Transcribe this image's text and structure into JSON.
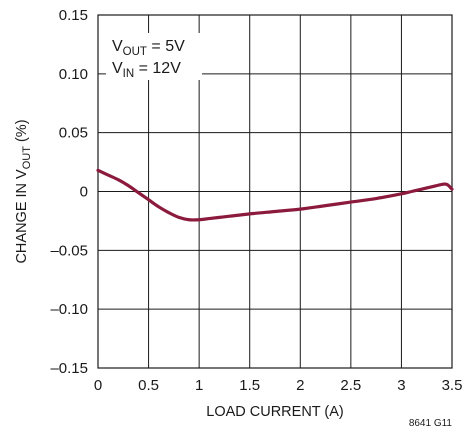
{
  "chart_data": {
    "type": "line",
    "title": "",
    "xlabel": "LOAD CURRENT (A)",
    "ylabel": {
      "prefix": "CHANGE IN V",
      "subscript": "OUT",
      "suffix": " (%)"
    },
    "xlim": [
      0,
      3.5
    ],
    "ylim": [
      -0.15,
      0.15
    ],
    "x_ticks": [
      0,
      0.5,
      1,
      1.5,
      2,
      2.5,
      3,
      3.5
    ],
    "x_tick_labels": [
      "0",
      "0.5",
      "1",
      "1.5",
      "2",
      "2.5",
      "3",
      "3.5"
    ],
    "y_ticks": [
      0.15,
      0.1,
      0.05,
      0,
      -0.05,
      -0.1,
      -0.15
    ],
    "y_tick_labels": [
      "0.15",
      "0.10",
      "0.05",
      "0",
      "–0.05",
      "–0.10",
      "–0.15"
    ],
    "grid": true,
    "annotations": [
      {
        "prefix": "V",
        "subscript": "OUT",
        "suffix": " = 5V"
      },
      {
        "prefix": "V",
        "subscript": "IN",
        "suffix": " = 12V"
      }
    ],
    "figure_id": "8641 G11",
    "series": [
      {
        "color": "#8b1a3c",
        "x": [
          0,
          0.1,
          0.2,
          0.3,
          0.4,
          0.5,
          0.6,
          0.7,
          0.8,
          0.9,
          1.0,
          1.1,
          1.2,
          1.3,
          1.5,
          1.75,
          2.0,
          2.25,
          2.5,
          2.75,
          3.0,
          3.1,
          3.2,
          3.3,
          3.4,
          3.45,
          3.5
        ],
        "y": [
          0.018,
          0.014,
          0.01,
          0.005,
          -0.001,
          -0.007,
          -0.013,
          -0.018,
          -0.022,
          -0.024,
          -0.024,
          -0.023,
          -0.022,
          -0.021,
          -0.019,
          -0.017,
          -0.015,
          -0.012,
          -0.009,
          -0.006,
          -0.002,
          0.0,
          0.002,
          0.004,
          0.006,
          0.006,
          0.002
        ]
      }
    ]
  }
}
